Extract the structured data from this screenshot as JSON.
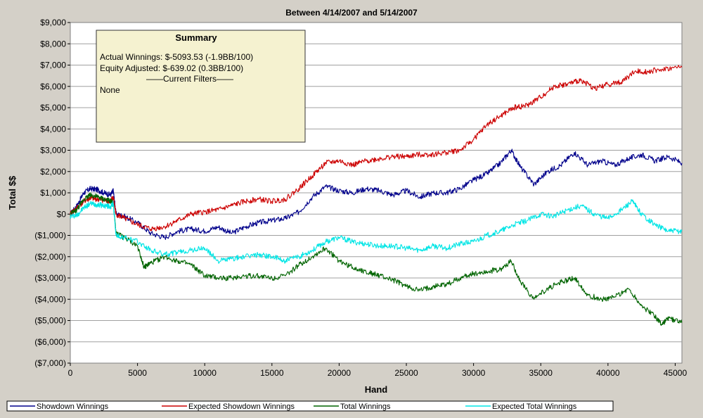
{
  "chart_data": {
    "type": "line",
    "title": "Between 4/14/2007 and 5/14/2007",
    "xlabel": "Hand",
    "ylabel": "Total $$",
    "xlim": [
      0,
      45500
    ],
    "ylim": [
      -7000,
      9000
    ],
    "x_ticks": [
      0,
      5000,
      10000,
      15000,
      20000,
      25000,
      30000,
      35000,
      40000,
      45000
    ],
    "y_ticks": [
      "$9,000",
      "$8,000",
      "$7,000",
      "$6,000",
      "$5,000",
      "$4,000",
      "$3,000",
      "$2,000",
      "$1,000",
      "$0",
      "($1,000)",
      "($2,000)",
      "($3,000)",
      "($4,000)",
      "($5,000)",
      "($6,000)",
      "($7,000)"
    ],
    "grid": true,
    "legend_position": "bottom",
    "series": [
      {
        "name": "Showdown Winnings",
        "color": "#00008b",
        "x": [
          0,
          500,
          1000,
          1500,
          2000,
          2500,
          3000,
          3200,
          3400,
          4000,
          5000,
          6000,
          7000,
          8000,
          9000,
          10000,
          11000,
          12000,
          13000,
          14000,
          15000,
          16000,
          17000,
          18000,
          19000,
          20000,
          21000,
          22000,
          23000,
          24000,
          25000,
          26000,
          27000,
          28000,
          29000,
          30000,
          31000,
          32000,
          32800,
          33500,
          34500,
          35500,
          36500,
          37500,
          38500,
          39500,
          40500,
          41500,
          42500,
          43500,
          44500,
          45500
        ],
        "y": [
          0,
          400,
          1000,
          1200,
          1150,
          1000,
          900,
          1100,
          0,
          -100,
          -400,
          -900,
          -1100,
          -800,
          -700,
          -800,
          -600,
          -900,
          -600,
          -400,
          -300,
          -200,
          100,
          800,
          1300,
          1100,
          1000,
          1200,
          1100,
          900,
          1100,
          800,
          1000,
          1000,
          1200,
          1600,
          1900,
          2400,
          3000,
          2200,
          1400,
          2000,
          2300,
          2900,
          2300,
          2500,
          2300,
          2600,
          2800,
          2500,
          2700,
          2400
        ]
      },
      {
        "name": "Expected Showdown Winnings",
        "color": "#cc0000",
        "x": [
          0,
          500,
          1000,
          1500,
          2000,
          2500,
          3000,
          3200,
          3400,
          4000,
          5000,
          6000,
          7000,
          8000,
          9000,
          10000,
          11000,
          12000,
          13000,
          14000,
          15000,
          16000,
          17000,
          18000,
          19000,
          20000,
          21000,
          22000,
          23000,
          24000,
          25000,
          26000,
          27000,
          28000,
          29000,
          30000,
          31000,
          32000,
          33000,
          34000,
          35000,
          36000,
          37000,
          38000,
          39000,
          40000,
          41000,
          42000,
          43000,
          44000,
          45500
        ],
        "y": [
          0,
          300,
          600,
          750,
          700,
          650,
          600,
          800,
          0,
          -200,
          -500,
          -700,
          -600,
          -300,
          0,
          100,
          200,
          400,
          600,
          700,
          600,
          700,
          1200,
          1800,
          2400,
          2500,
          2300,
          2500,
          2600,
          2700,
          2700,
          2800,
          2800,
          2900,
          3000,
          3500,
          4200,
          4600,
          5000,
          5100,
          5500,
          6000,
          6100,
          6300,
          5900,
          6100,
          6200,
          6700,
          6700,
          6800,
          6900
        ]
      },
      {
        "name": "Total Winnings",
        "color": "#006400",
        "x": [
          0,
          500,
          1000,
          1500,
          2000,
          2500,
          3000,
          3200,
          3400,
          4000,
          5000,
          5500,
          6000,
          7000,
          8000,
          9000,
          10000,
          11000,
          12000,
          13000,
          14000,
          15000,
          16000,
          17000,
          18000,
          19000,
          20000,
          21000,
          22000,
          23000,
          24000,
          25000,
          26000,
          27000,
          28000,
          29000,
          30000,
          31000,
          32000,
          32800,
          33500,
          34500,
          35500,
          36500,
          37500,
          38500,
          39500,
          40500,
          41500,
          42500,
          43500,
          44000,
          44500,
          45500
        ],
        "y": [
          0,
          200,
          700,
          900,
          800,
          700,
          600,
          500,
          -900,
          -1100,
          -1500,
          -2500,
          -2300,
          -2000,
          -2200,
          -2400,
          -2900,
          -3000,
          -3000,
          -2900,
          -2900,
          -3000,
          -2900,
          -2400,
          -2000,
          -1600,
          -2200,
          -2500,
          -2700,
          -2900,
          -3100,
          -3400,
          -3600,
          -3400,
          -3300,
          -3000,
          -2800,
          -2700,
          -2600,
          -2200,
          -3200,
          -4000,
          -3500,
          -3200,
          -3000,
          -3800,
          -4000,
          -3900,
          -3500,
          -4300,
          -4800,
          -5200,
          -4900,
          -5100
        ]
      },
      {
        "name": "Expected Total Winnings",
        "color": "#00e5e5",
        "x": [
          0,
          500,
          1000,
          1500,
          2000,
          2500,
          3000,
          3200,
          3400,
          4000,
          5000,
          6000,
          7000,
          8000,
          9000,
          10000,
          11000,
          12000,
          13000,
          14000,
          15000,
          16000,
          17000,
          18000,
          19000,
          20000,
          21000,
          22000,
          23000,
          24000,
          25000,
          26000,
          27000,
          28000,
          29000,
          30000,
          31000,
          32000,
          33000,
          34000,
          35000,
          36000,
          37000,
          38000,
          39000,
          40000,
          41000,
          41800,
          42500,
          43500,
          44500,
          45500
        ],
        "y": [
          -100,
          -50,
          300,
          500,
          450,
          400,
          350,
          500,
          -1000,
          -1100,
          -1300,
          -1700,
          -1900,
          -1800,
          -1700,
          -1600,
          -2200,
          -2100,
          -2000,
          -1900,
          -2000,
          -2200,
          -2000,
          -1700,
          -1300,
          -1100,
          -1300,
          -1400,
          -1500,
          -1500,
          -1600,
          -1700,
          -1500,
          -1600,
          -1400,
          -1300,
          -1000,
          -800,
          -500,
          -300,
          0,
          -100,
          200,
          400,
          0,
          -200,
          200,
          600,
          0,
          -500,
          -800,
          -800
        ]
      }
    ]
  },
  "summary": {
    "title": "Summary",
    "line1": "Actual Winnings: $-5093.53 (-1.9BB/100)",
    "line2": "Equity Adjusted: $-639.02 (0.3BB/100)",
    "line3": "——Current Filters——",
    "line4": "None"
  }
}
